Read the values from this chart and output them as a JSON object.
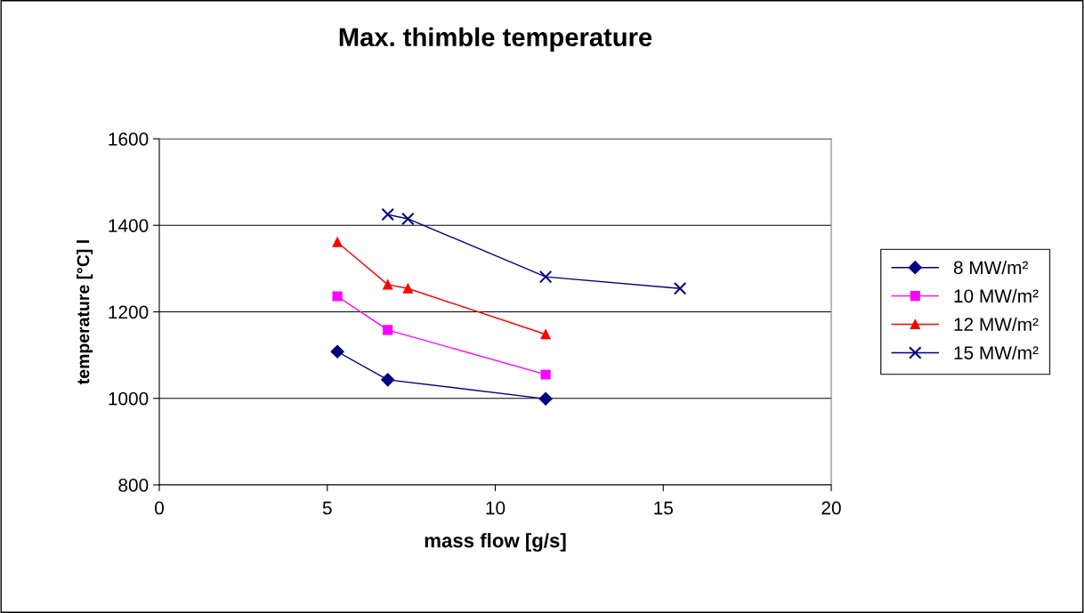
{
  "chart_data": {
    "type": "line",
    "title": "Max. thimble temperature",
    "xlabel": "mass flow [g/s]",
    "ylabel": "temperature [°C] l",
    "series": [
      {
        "name": "8 MW/m²",
        "color": "#000080",
        "marker": "diamond",
        "x": [
          5.3,
          6.8,
          11.5
        ],
        "values": [
          1108,
          1043,
          999
        ]
      },
      {
        "name": "10 MW/m²",
        "color": "#ff00ff",
        "marker": "square",
        "x": [
          5.3,
          6.8,
          11.5
        ],
        "values": [
          1236,
          1158,
          1055
        ]
      },
      {
        "name": "12 MW/m²",
        "color": "#ff0000",
        "marker": "triangle",
        "x": [
          5.3,
          6.8,
          7.4,
          11.5
        ],
        "values": [
          1361,
          1263,
          1254,
          1148
        ]
      },
      {
        "name": "15 MW/m²",
        "color": "#000080",
        "marker": "cross",
        "x": [
          6.8,
          7.4,
          11.5,
          15.5
        ],
        "values": [
          1425,
          1415,
          1281,
          1254
        ]
      }
    ],
    "xlim": [
      0,
      20
    ],
    "xticks": [
      0,
      5,
      10,
      15,
      20
    ],
    "ylim": [
      800,
      1600
    ],
    "yticks": [
      800,
      1000,
      1200,
      1400,
      1600
    ],
    "grid": "y",
    "legend": "right",
    "line_style": "solid"
  }
}
